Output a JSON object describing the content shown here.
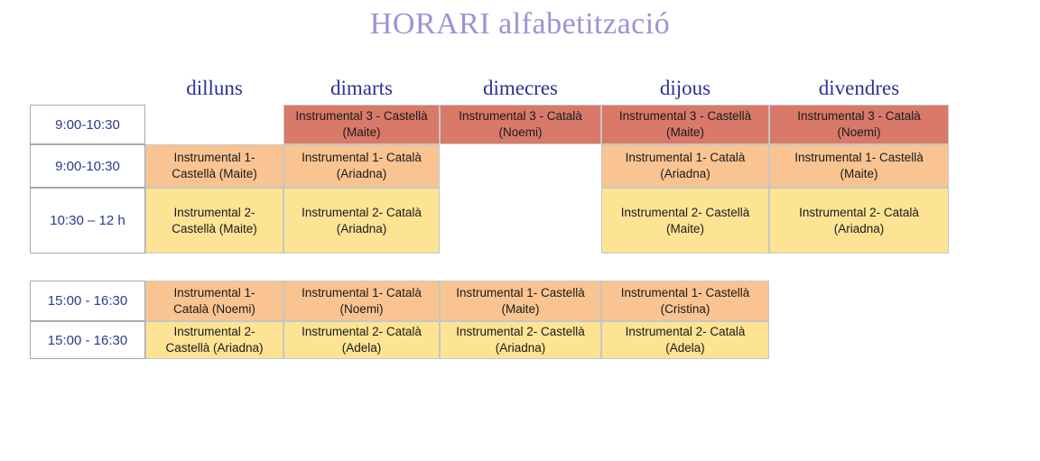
{
  "title": "HORARI alfabetització",
  "days": [
    "dilluns",
    "dimarts",
    "dimecres",
    "dijous",
    "divendres"
  ],
  "colors": {
    "title": "#9e92d5",
    "day_header": "#2e3192",
    "time_text": "#2b3990",
    "cell_text": "#1a1a1a",
    "cell_red": "#d8796a",
    "cell_orange": "#f9c491",
    "cell_yellow": "#fde394",
    "border_time": "#a9a9a9",
    "border_cell": "#c6c6c6"
  },
  "tables": [
    {
      "name": "morning",
      "rows": [
        {
          "time": "9:00-10:30",
          "cells": [
            null,
            {
              "line1": "Instrumental 3 - Castellà",
              "line2": "(Maite)",
              "color": "red"
            },
            {
              "line1": "Instrumental 3 - Català",
              "line2": "(Noemi)",
              "color": "red"
            },
            {
              "line1": "Instrumental 3 - Castellà",
              "line2": "(Maite)",
              "color": "red"
            },
            {
              "line1": "Instrumental 3 - Català",
              "line2": "(Noemi)",
              "color": "red"
            }
          ]
        },
        {
          "time": "9:00-10:30",
          "cells": [
            {
              "line1": "Instrumental 1-",
              "line2": "Castellà (Maite)",
              "color": "orange"
            },
            {
              "line1": "Instrumental 1- Català",
              "line2": "(Ariadna)",
              "color": "orange"
            },
            null,
            {
              "line1": "Instrumental 1- Català",
              "line2": "(Ariadna)",
              "color": "orange"
            },
            {
              "line1": "Instrumental 1- Castellà",
              "line2": "(Maite)",
              "color": "orange"
            }
          ]
        },
        {
          "time": "10:30 – 12 h",
          "cells": [
            {
              "line1": "Instrumental 2-",
              "line2": "Castellà (Maite)",
              "color": "yellow"
            },
            {
              "line1": "Instrumental 2- Català",
              "line2": "(Ariadna)",
              "color": "yellow"
            },
            null,
            {
              "line1": "Instrumental 2- Castellà",
              "line2": "(Maite)",
              "color": "yellow"
            },
            {
              "line1": "Instrumental 2- Català",
              "line2": "(Ariadna)",
              "color": "yellow"
            }
          ]
        }
      ]
    },
    {
      "name": "afternoon",
      "rows": [
        {
          "time": "15:00 - 16:30",
          "cells": [
            {
              "line1": "Instrumental 1-",
              "line2": "Català (Noemi)",
              "color": "orange"
            },
            {
              "line1": "Instrumental 1- Català",
              "line2": "(Noemi)",
              "color": "orange"
            },
            {
              "line1": "Instrumental 1- Castellà",
              "line2": "(Maite)",
              "color": "orange"
            },
            {
              "line1": "Instrumental 1- Castellà",
              "line2": "(Cristina)",
              "color": "orange"
            }
          ]
        },
        {
          "time": "15:00 - 16:30",
          "cells": [
            {
              "line1": "Instrumental 2-",
              "line2": "Castellà (Ariadna)",
              "color": "yellow"
            },
            {
              "line1": "Instrumental 2- Català",
              "line2": "(Adela)",
              "color": "yellow"
            },
            {
              "line1": "Instrumental 2- Castellà",
              "line2": "(Ariadna)",
              "color": "yellow"
            },
            {
              "line1": "Instrumental 2- Català",
              "line2": "(Adela)",
              "color": "yellow"
            }
          ]
        }
      ]
    }
  ]
}
